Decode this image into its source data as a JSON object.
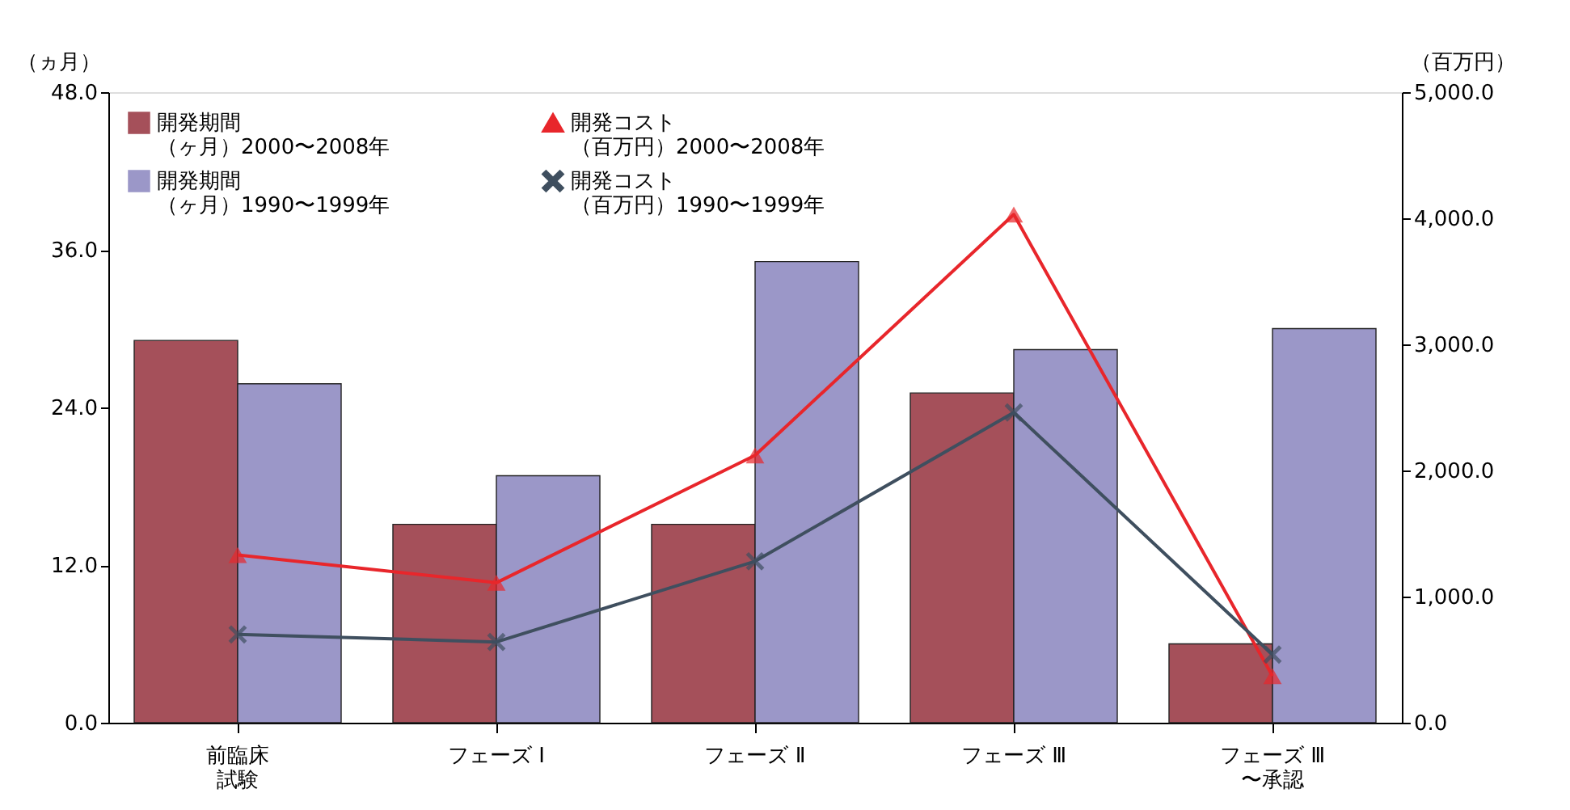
{
  "chart_data": {
    "type": "bar",
    "categories": [
      "前臨床試験",
      "フェーズ Ⅰ",
      "フェーズ Ⅱ",
      "フェーズ Ⅲ",
      "フェーズ Ⅲ〜承認"
    ],
    "ylabel": "（ヵ月）",
    "y2label": "（百万円）",
    "ylim": [
      0,
      48
    ],
    "yticks": [
      {
        "value": 0,
        "label": "0.0"
      },
      {
        "value": 12,
        "label": "12.0"
      },
      {
        "value": 24,
        "label": "24.0"
      },
      {
        "value": 36,
        "label": "36.0"
      },
      {
        "value": 48,
        "label": "48.0"
      }
    ],
    "y2lim": [
      0,
      5000
    ],
    "y2ticks": [
      {
        "value": 0,
        "label": "0.0"
      },
      {
        "value": 1000,
        "label": "1,000.0"
      },
      {
        "value": 2000,
        "label": "2,000.0"
      },
      {
        "value": 3000,
        "label": "3,000.0"
      },
      {
        "value": 4000,
        "label": "4,000.0"
      },
      {
        "value": 5000,
        "label": "5,000.0"
      }
    ],
    "grid": false,
    "legend": "top left",
    "series": [
      {
        "name": "開発期間（ヶ月）2000〜2008年",
        "color": "#a5505a",
        "values": [
          29.1,
          15.1,
          15.1,
          25.1,
          6.0
        ]
      },
      {
        "name": "開発期間（ヶ月）1990〜1999年",
        "color": "#9b97c8",
        "values": [
          25.8,
          18.8,
          35.1,
          28.4,
          30.0
        ]
      },
      {
        "name": "開発コスト（百万円）2000〜2008年",
        "type": "line",
        "axis": "y2",
        "marker": "triangle",
        "color": "#e8262b",
        "values": [
          1330,
          1110,
          2120,
          4030,
          370
        ]
      },
      {
        "name": "開発コスト（百万円）1990〜1999年",
        "type": "line",
        "axis": "y2",
        "marker": "cross",
        "color": "#3f4f5f",
        "values": [
          700,
          640,
          1280,
          2460,
          540
        ]
      }
    ]
  }
}
